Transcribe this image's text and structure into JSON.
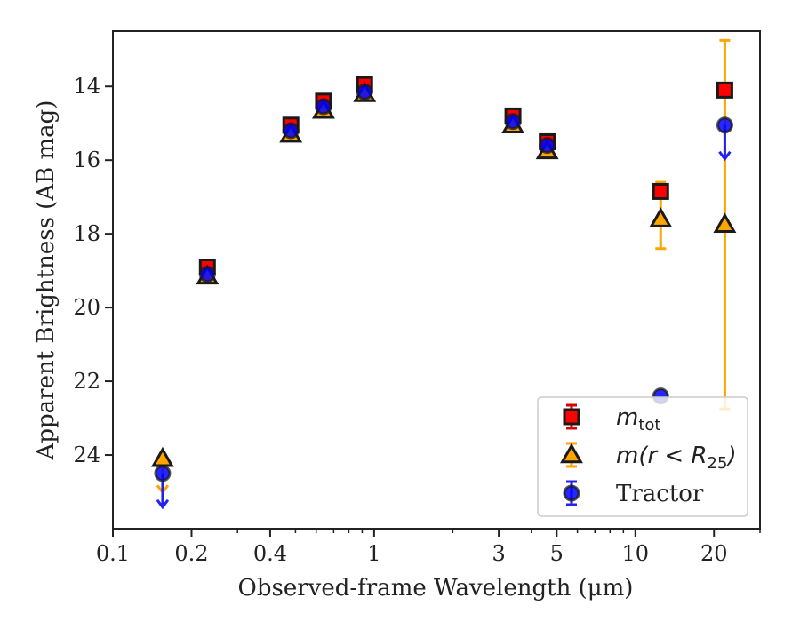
{
  "chart_data": {
    "type": "scatter",
    "xlabel": "Observed-frame Wavelength (μm)",
    "ylabel": "Apparent Brightness (AB mag)",
    "xscale": "log",
    "xlim": [
      0.1,
      30
    ],
    "ylim": [
      26.0,
      12.5
    ],
    "y_inverted": true,
    "grid": false,
    "legend_position": "lower-right",
    "x_ticks": [
      {
        "value": 0.1,
        "label": "0.1"
      },
      {
        "value": 0.2,
        "label": "0.2"
      },
      {
        "value": 0.4,
        "label": "0.4"
      },
      {
        "value": 1,
        "label": "1"
      },
      {
        "value": 3,
        "label": "3"
      },
      {
        "value": 5,
        "label": "5"
      },
      {
        "value": 10,
        "label": "10"
      },
      {
        "value": 20,
        "label": "20"
      }
    ],
    "y_ticks": [
      {
        "value": 14,
        "label": "14"
      },
      {
        "value": 16,
        "label": "16"
      },
      {
        "value": 18,
        "label": "18"
      },
      {
        "value": 20,
        "label": "20"
      },
      {
        "value": 22,
        "label": "22"
      },
      {
        "value": 24,
        "label": "24"
      }
    ],
    "series": [
      {
        "name": "m_tot",
        "name_display": {
          "main": "m",
          "sub": "tot"
        },
        "marker": "square",
        "fill": "#ff0000",
        "edge": "#1a1a1a",
        "errcolor": "#dd0000",
        "points": [
          {
            "x": 0.23,
            "y": 18.9,
            "err": 0.05
          },
          {
            "x": 0.48,
            "y": 15.05,
            "err": 0.05
          },
          {
            "x": 0.64,
            "y": 14.4,
            "err": 0.05
          },
          {
            "x": 0.92,
            "y": 13.95,
            "err": 0.05
          },
          {
            "x": 3.4,
            "y": 14.8,
            "err": 0.05
          },
          {
            "x": 4.6,
            "y": 15.5,
            "err": 0.05
          },
          {
            "x": 12.5,
            "y": 16.85,
            "err": 0.08
          },
          {
            "x": 22.0,
            "y": 14.1,
            "err": 0.08
          }
        ]
      },
      {
        "name": "m(r < R_25)",
        "name_display": {
          "main": "m(r < R",
          "sub": "25",
          "tail": ")"
        },
        "marker": "triangle",
        "fill": "#ffa500",
        "edge": "#1a1a1a",
        "errcolor": "#ffa500",
        "points": [
          {
            "x": 0.155,
            "y": 24.1,
            "upper_limit": true
          },
          {
            "x": 0.23,
            "y": 19.15,
            "err": 0.05
          },
          {
            "x": 0.48,
            "y": 15.3,
            "err": 0.05
          },
          {
            "x": 0.64,
            "y": 14.65,
            "err": 0.05
          },
          {
            "x": 0.92,
            "y": 14.2,
            "err": 0.05
          },
          {
            "x": 3.4,
            "y": 15.05,
            "err": 0.05
          },
          {
            "x": 4.6,
            "y": 15.75,
            "err": 0.05
          },
          {
            "x": 12.5,
            "y": 17.6,
            "err_low": 1.0,
            "err_high": 0.8
          },
          {
            "x": 22.0,
            "y": 17.75,
            "err_low": 5.0,
            "err_high": 5.0
          }
        ]
      },
      {
        "name": "Tractor",
        "name_display": {
          "main": "Tractor"
        },
        "marker": "circle",
        "fill": "#0000ff",
        "edge": "#1a1a1a",
        "errcolor": "#2222ee",
        "points": [
          {
            "x": 0.155,
            "y": 24.5,
            "upper_limit": true
          },
          {
            "x": 0.23,
            "y": 19.1
          },
          {
            "x": 0.48,
            "y": 15.2
          },
          {
            "x": 0.64,
            "y": 14.55
          },
          {
            "x": 0.92,
            "y": 14.15
          },
          {
            "x": 3.4,
            "y": 14.95
          },
          {
            "x": 4.6,
            "y": 15.6
          },
          {
            "x": 12.5,
            "y": 22.4
          },
          {
            "x": 22.0,
            "y": 15.05,
            "upper_limit": true
          }
        ]
      }
    ]
  }
}
